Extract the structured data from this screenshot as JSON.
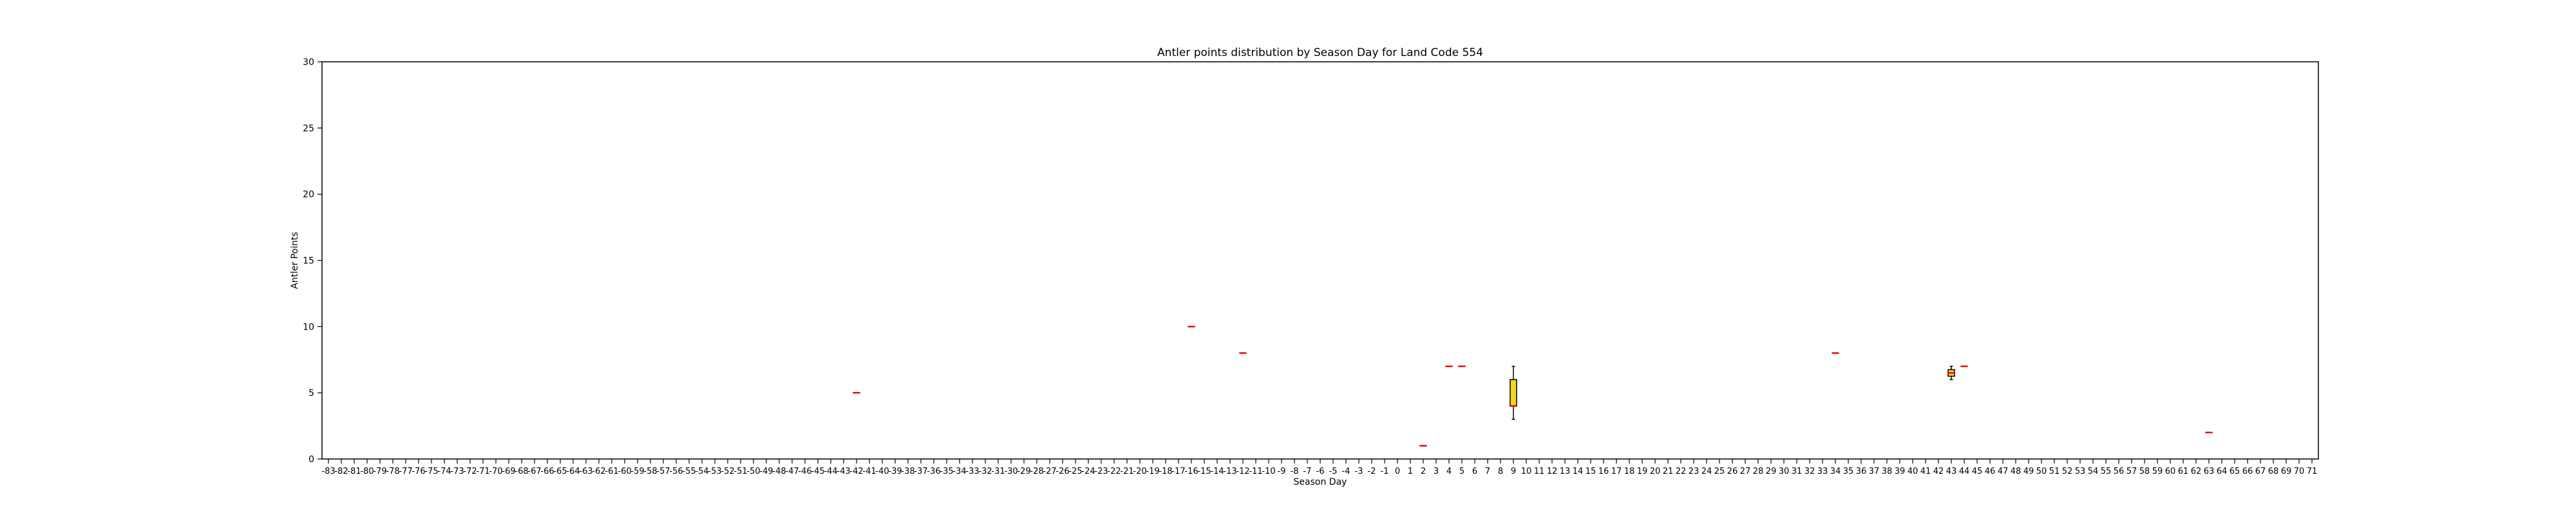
{
  "chart_data": {
    "type": "box",
    "title": "Antler points distribution by Season Day for Land Code 554",
    "xlabel": "Season Day",
    "ylabel": "Antler Points",
    "ylim": [
      0,
      30
    ],
    "yticks": [
      0,
      5,
      10,
      15,
      20,
      25,
      30
    ],
    "x_first_day": -83,
    "x_last_day": 71,
    "grid": false,
    "legend": "none",
    "boxes": [
      {
        "day": -42,
        "min": 5,
        "q1": 5,
        "median": 5,
        "q3": 5,
        "max": 5
      },
      {
        "day": -16,
        "min": 10,
        "q1": 10,
        "median": 10,
        "q3": 10,
        "max": 10
      },
      {
        "day": -12,
        "min": 8,
        "q1": 8,
        "median": 8,
        "q3": 8,
        "max": 8
      },
      {
        "day": 2,
        "min": 1,
        "q1": 1,
        "median": 1,
        "q3": 1,
        "max": 1
      },
      {
        "day": 4,
        "min": 7,
        "q1": 7,
        "median": 7,
        "q3": 7,
        "max": 7
      },
      {
        "day": 5,
        "min": 7,
        "q1": 7,
        "median": 7,
        "q3": 7,
        "max": 7
      },
      {
        "day": 9,
        "min": 3,
        "q1": 4,
        "median": 4,
        "q3": 6,
        "max": 7
      },
      {
        "day": 34,
        "min": 8,
        "q1": 8,
        "median": 8,
        "q3": 8,
        "max": 8
      },
      {
        "day": 43,
        "min": 6,
        "q1": 6.25,
        "median": 6.5,
        "q3": 6.75,
        "max": 7
      },
      {
        "day": 44,
        "min": 7,
        "q1": 7,
        "median": 7,
        "q3": 7,
        "max": 7
      },
      {
        "day": 63,
        "min": 2,
        "q1": 2,
        "median": 2,
        "q3": 2,
        "max": 2
      }
    ],
    "colors": {
      "box_fill": "#f2d81c",
      "box_edge": "#000000",
      "median": "#ff0000",
      "whisker": "#000000",
      "axes": "#000000"
    }
  }
}
